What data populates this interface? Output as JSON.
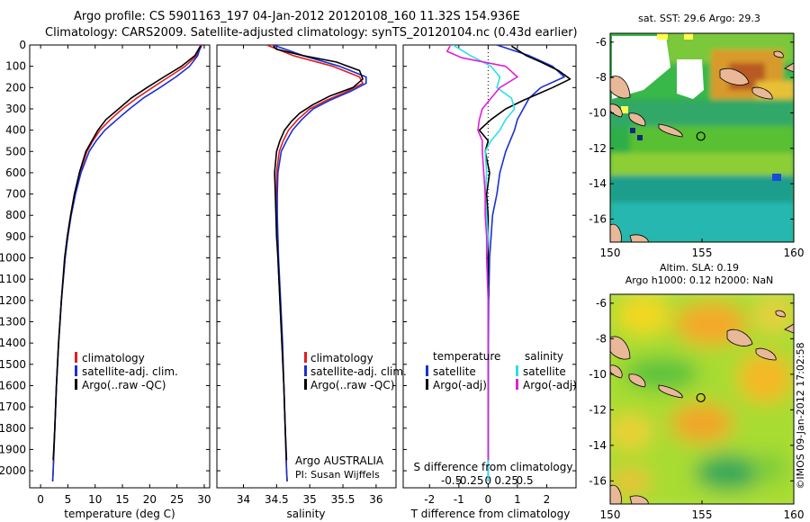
{
  "header": {
    "line1": "Argo profile: CS 5901163_197 04-Jan-2012 20120108_160 11.32S 154.936E",
    "line2": "Climatology: CARS2009. Satellite-adjusted climatology: synTS_20120104.nc (0.43d earlier)"
  },
  "colors": {
    "climatology": "#e02020",
    "satellite": "#1a2fd6",
    "argo": "#000000",
    "s_satellite": "#2ae0e8",
    "s_argo": "#e020d8"
  },
  "chart_data": [
    {
      "id": "temperature",
      "type": "line",
      "xlabel": "temperature (deg C)",
      "ylabel": "depth",
      "xlim": [
        -2,
        31
      ],
      "ylim": [
        2080,
        0
      ],
      "xticks": [
        0,
        5,
        10,
        15,
        20,
        25,
        30
      ],
      "yticks": [
        0,
        100,
        200,
        300,
        400,
        500,
        600,
        700,
        800,
        900,
        1000,
        1100,
        1200,
        1300,
        1400,
        1500,
        1600,
        1700,
        1800,
        1900,
        2000
      ],
      "legend": [
        "climatology",
        "satellite-adj. clim.",
        "Argo(..raw -QC)"
      ],
      "series": [
        {
          "name": "climatology",
          "color": "climatology",
          "depth": [
            0,
            50,
            100,
            150,
            200,
            250,
            300,
            350,
            400,
            450,
            500,
            600,
            700,
            800,
            900,
            1000,
            1200,
            1400,
            1600,
            1800,
            2000,
            2050
          ],
          "values": [
            29.6,
            28.6,
            26.5,
            23.5,
            20.5,
            17.6,
            15.0,
            12.8,
            10.9,
            9.6,
            8.5,
            7.2,
            6.2,
            5.5,
            4.9,
            4.5,
            3.8,
            3.3,
            2.9,
            2.6,
            2.3,
            2.2
          ]
        },
        {
          "name": "satellite-adj. clim.",
          "color": "satellite",
          "depth": [
            0,
            50,
            100,
            150,
            200,
            250,
            300,
            350,
            400,
            450,
            500,
            600,
            700,
            800,
            900,
            1000,
            1200,
            1400,
            1600,
            1800,
            2000,
            2050
          ],
          "values": [
            29.4,
            28.8,
            27.3,
            24.8,
            21.9,
            18.8,
            16.3,
            14.0,
            11.8,
            10.2,
            8.9,
            7.4,
            6.4,
            5.6,
            5.0,
            4.5,
            3.8,
            3.3,
            2.9,
            2.6,
            2.3,
            2.2
          ]
        },
        {
          "name": "Argo(..raw -QC)",
          "color": "argo",
          "depth": [
            5,
            50,
            100,
            150,
            200,
            250,
            300,
            350,
            400,
            450,
            500,
            600,
            700,
            800,
            900,
            1000,
            1200,
            1400,
            1600,
            1800,
            1950
          ],
          "values": [
            29.3,
            28.3,
            25.8,
            22.6,
            19.5,
            16.6,
            14.3,
            12.0,
            10.5,
            9.4,
            8.3,
            7.1,
            6.2,
            5.5,
            4.9,
            4.4,
            3.8,
            3.3,
            2.9,
            2.6,
            2.3
          ]
        }
      ]
    },
    {
      "id": "salinity",
      "type": "line",
      "xlabel": "salinity",
      "xlim": [
        33.6,
        36.3
      ],
      "ylim": [
        2080,
        0
      ],
      "xticks": [
        34,
        34.5,
        35,
        35.5,
        36
      ],
      "legend": [
        "climatology",
        "satellite-adj. clim.",
        "Argo(..raw -QC)"
      ],
      "annotation": [
        "Argo AUSTRALIA",
        "PI: Susan Wijffels"
      ],
      "series": [
        {
          "name": "climatology",
          "color": "climatology",
          "depth": [
            0,
            50,
            100,
            150,
            180,
            220,
            260,
            300,
            350,
            400,
            450,
            500,
            600,
            700,
            800,
            900,
            1000,
            1200,
            1400,
            1600,
            1800,
            2000,
            2050
          ],
          "values": [
            34.35,
            34.75,
            35.35,
            35.75,
            35.8,
            35.55,
            35.25,
            35.0,
            34.82,
            34.68,
            34.6,
            34.54,
            34.5,
            34.5,
            34.5,
            34.51,
            34.52,
            34.55,
            34.58,
            34.61,
            34.63,
            34.65,
            34.66
          ]
        },
        {
          "name": "satellite-adj. clim.",
          "color": "satellite",
          "depth": [
            0,
            50,
            100,
            150,
            180,
            220,
            260,
            300,
            350,
            400,
            450,
            500,
            600,
            700,
            800,
            900,
            1000,
            1200,
            1400,
            1600,
            1800,
            2000,
            2050
          ],
          "values": [
            34.45,
            34.9,
            35.45,
            35.85,
            35.85,
            35.6,
            35.3,
            35.05,
            34.88,
            34.74,
            34.65,
            34.57,
            34.52,
            34.51,
            34.51,
            34.52,
            34.53,
            34.56,
            34.59,
            34.61,
            34.63,
            34.65,
            34.66
          ]
        },
        {
          "name": "Argo(..raw -QC)",
          "color": "argo",
          "depth": [
            5,
            20,
            50,
            80,
            120,
            160,
            200,
            240,
            280,
            320,
            360,
            400,
            450,
            500,
            600,
            700,
            800,
            900,
            1000,
            1200,
            1400,
            1600,
            1800,
            1950
          ],
          "values": [
            34.45,
            34.5,
            34.9,
            35.4,
            35.75,
            35.8,
            35.65,
            35.3,
            35.05,
            34.85,
            34.72,
            34.62,
            34.55,
            34.5,
            34.47,
            34.48,
            34.49,
            34.5,
            34.52,
            34.55,
            34.58,
            34.61,
            34.63,
            34.65
          ]
        }
      ]
    },
    {
      "id": "difference",
      "type": "line",
      "xlabel": "T difference from climatology",
      "x2label": "S difference from climatology",
      "xlim": [
        -2.9,
        3.0
      ],
      "ylim": [
        2080,
        0
      ],
      "xticks": [
        -2,
        -1,
        0,
        1,
        2
      ],
      "xtick_labels": [
        "-2",
        "-1",
        "0",
        "1",
        "2"
      ],
      "x2ticks": [
        -1.25,
        -0.625,
        0,
        0.625,
        1.25
      ],
      "x2tick_labels": [
        "-0.5",
        "-0.25",
        "0",
        "0.25",
        "0.5"
      ],
      "legend_t": {
        "title": "temperature",
        "items": [
          "satellite",
          "Argo(-adj)"
        ]
      },
      "legend_s": {
        "title": "salinity",
        "items": [
          "satellite",
          "Argo(-adj)"
        ]
      },
      "series": [
        {
          "name": "T satellite",
          "color": "satellite",
          "depth": [
            0,
            50,
            100,
            150,
            200,
            250,
            300,
            350,
            400,
            500,
            600,
            700,
            800,
            1000,
            1200,
            1400,
            1600,
            1800,
            2050
          ],
          "values": [
            0.3,
            1.4,
            2.2,
            2.6,
            1.8,
            1.4,
            1.2,
            1.0,
            0.9,
            0.6,
            0.4,
            0.3,
            0.15,
            0.05,
            0.02,
            0.01,
            0.01,
            0.0,
            0.0
          ]
        },
        {
          "name": "T Argo(-adj)",
          "color": "argo",
          "depth": [
            5,
            50,
            80,
            120,
            160,
            200,
            230,
            260,
            300,
            350,
            400,
            450,
            500,
            600,
            700,
            800,
            1000,
            1200,
            1600,
            1950
          ],
          "values": [
            0.8,
            1.3,
            1.8,
            2.4,
            2.8,
            2.2,
            1.7,
            1.2,
            0.6,
            0.1,
            -0.3,
            0.0,
            -0.1,
            0.05,
            -0.05,
            0.0,
            0.0,
            0.0,
            0.0,
            0.0
          ]
        },
        {
          "name": "S satellite",
          "color": "s_satellite",
          "depth": [
            0,
            50,
            100,
            150,
            200,
            250,
            300,
            350,
            400,
            450,
            500,
            600,
            700,
            800,
            900,
            1000,
            1200,
            1600,
            2050
          ],
          "values": [
            -1.2,
            -0.6,
            0.1,
            0.4,
            0.3,
            0.8,
            0.9,
            0.6,
            0.4,
            0.1,
            -0.1,
            -0.05,
            -0.1,
            -0.05,
            0.0,
            -0.05,
            0.0,
            0.0,
            0.0
          ]
        },
        {
          "name": "S Argo(-adj)",
          "color": "s_argo",
          "depth": [
            5,
            30,
            60,
            100,
            150,
            200,
            250,
            300,
            350,
            400,
            450,
            500,
            600,
            700,
            800,
            900,
            1000,
            1200,
            1600,
            1950
          ],
          "values": [
            -1.3,
            -1.4,
            -0.9,
            0.6,
            1.0,
            0.4,
            0.1,
            -0.2,
            -0.3,
            -0.35,
            -0.2,
            -0.2,
            -0.15,
            -0.1,
            -0.1,
            -0.05,
            -0.05,
            0.0,
            0.0,
            0.0
          ]
        }
      ]
    }
  ],
  "maps": [
    {
      "id": "sst",
      "title": "sat. SST: 29.6 Argo: 29.3",
      "xlim": [
        150,
        160
      ],
      "ylim": [
        -17.3,
        -5.5
      ],
      "xticks": [
        150,
        155,
        160
      ],
      "yticks": [
        -6,
        -8,
        -10,
        -12,
        -14,
        -16
      ],
      "marker": {
        "lon": 154.936,
        "lat": -11.32
      }
    },
    {
      "id": "sla",
      "title_line1": "Altim. SLA: 0.19",
      "title_line2": "Argo h1000: 0.12 h2000: NaN",
      "xlim": [
        150,
        160
      ],
      "ylim": [
        -17.3,
        -5.5
      ],
      "xticks": [
        150,
        155,
        160
      ],
      "yticks": [
        -6,
        -8,
        -10,
        -12,
        -14,
        -16
      ],
      "marker": {
        "lon": 154.936,
        "lat": -11.32
      }
    }
  ],
  "footer": {
    "credit": "©IMOS 09-Jan-2012 17:02:58"
  }
}
